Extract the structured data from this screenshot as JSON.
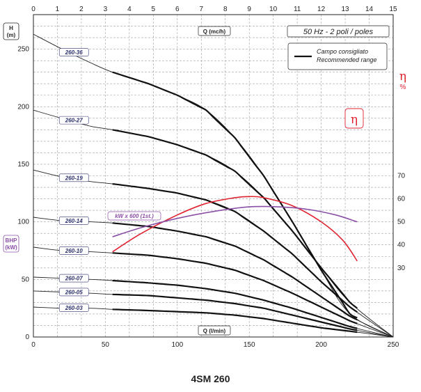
{
  "chart_data": {
    "type": "line",
    "title": "4SM 260",
    "header": "50 Hz - 2 poli / poles",
    "x_top": {
      "label": "Q",
      "unit": "(mc/h)",
      "ticks": [
        0,
        1,
        2,
        3,
        4,
        5,
        6,
        7,
        8,
        9,
        10,
        11,
        12,
        13,
        14,
        15
      ],
      "range": [
        0,
        15
      ]
    },
    "x_bottom": {
      "label": "Q",
      "unit": "(l/min)",
      "ticks": [
        0,
        50,
        100,
        150,
        200,
        250
      ],
      "range": [
        0,
        250
      ]
    },
    "y_left": {
      "label": "H",
      "unit": "(m)",
      "ticks": [
        0,
        50,
        100,
        150,
        200,
        250
      ],
      "range": [
        0,
        280
      ]
    },
    "y_right_eta": {
      "label": "η",
      "unit": "%",
      "ticks": [
        30,
        40,
        50,
        60,
        70
      ],
      "range": [
        0,
        140
      ]
    },
    "bhp_label": {
      "label": "BHP",
      "unit": "(kW)"
    },
    "legend": {
      "line1": "Campo consigliato",
      "line2": "Recommended range"
    },
    "eta_box_label": "η",
    "kw_label": "kW x 600 (1st.)",
    "recommended_range_lpm": [
      55,
      225
    ],
    "head_curves": [
      {
        "model": "260-36",
        "points": [
          [
            0,
            263
          ],
          [
            20,
            250
          ],
          [
            40,
            238
          ],
          [
            55,
            230
          ],
          [
            80,
            220
          ],
          [
            100,
            210
          ],
          [
            120,
            197
          ],
          [
            140,
            173
          ],
          [
            160,
            140
          ],
          [
            180,
            100
          ],
          [
            200,
            58
          ],
          [
            220,
            20
          ],
          [
            250,
            0
          ]
        ]
      },
      {
        "model": "260-27",
        "points": [
          [
            0,
            197
          ],
          [
            25,
            188
          ],
          [
            40,
            183
          ],
          [
            55,
            180
          ],
          [
            80,
            174
          ],
          [
            100,
            167
          ],
          [
            120,
            158
          ],
          [
            140,
            144
          ],
          [
            160,
            121
          ],
          [
            180,
            92
          ],
          [
            200,
            60
          ],
          [
            220,
            30
          ],
          [
            250,
            0
          ]
        ]
      },
      {
        "model": "260-19",
        "points": [
          [
            0,
            145
          ],
          [
            20,
            139
          ],
          [
            40,
            135
          ],
          [
            55,
            133
          ],
          [
            80,
            129
          ],
          [
            100,
            125
          ],
          [
            120,
            119
          ],
          [
            140,
            109
          ],
          [
            160,
            92
          ],
          [
            180,
            72
          ],
          [
            200,
            48
          ],
          [
            220,
            26
          ],
          [
            250,
            0
          ]
        ]
      },
      {
        "model": "260-14",
        "points": [
          [
            0,
            104
          ],
          [
            20,
            101
          ],
          [
            40,
            100
          ],
          [
            55,
            99
          ],
          [
            80,
            96
          ],
          [
            100,
            92
          ],
          [
            120,
            87
          ],
          [
            140,
            79
          ],
          [
            160,
            67
          ],
          [
            180,
            52
          ],
          [
            200,
            35
          ],
          [
            220,
            18
          ],
          [
            250,
            0
          ]
        ]
      },
      {
        "model": "260-10",
        "points": [
          [
            0,
            78
          ],
          [
            20,
            75
          ],
          [
            40,
            74
          ],
          [
            55,
            73
          ],
          [
            80,
            71
          ],
          [
            100,
            68
          ],
          [
            120,
            64
          ],
          [
            140,
            58
          ],
          [
            160,
            49
          ],
          [
            180,
            38
          ],
          [
            200,
            26
          ],
          [
            220,
            14
          ],
          [
            250,
            0
          ]
        ]
      },
      {
        "model": "260-07",
        "points": [
          [
            0,
            52
          ],
          [
            20,
            51
          ],
          [
            40,
            50
          ],
          [
            55,
            49
          ],
          [
            80,
            47
          ],
          [
            100,
            45
          ],
          [
            120,
            42
          ],
          [
            140,
            38
          ],
          [
            160,
            32
          ],
          [
            180,
            25
          ],
          [
            200,
            17
          ],
          [
            220,
            9
          ],
          [
            250,
            0
          ]
        ]
      },
      {
        "model": "260-05",
        "points": [
          [
            0,
            40
          ],
          [
            20,
            39
          ],
          [
            40,
            38
          ],
          [
            55,
            37
          ],
          [
            80,
            36
          ],
          [
            100,
            34
          ],
          [
            120,
            32
          ],
          [
            140,
            29
          ],
          [
            160,
            25
          ],
          [
            180,
            19
          ],
          [
            200,
            13
          ],
          [
            220,
            7
          ],
          [
            250,
            0
          ]
        ]
      },
      {
        "model": "260-03",
        "points": [
          [
            0,
            26
          ],
          [
            20,
            25
          ],
          [
            40,
            25
          ],
          [
            55,
            24
          ],
          [
            80,
            23
          ],
          [
            100,
            22
          ],
          [
            120,
            21
          ],
          [
            140,
            19
          ],
          [
            160,
            16
          ],
          [
            180,
            12
          ],
          [
            200,
            8
          ],
          [
            220,
            5
          ],
          [
            250,
            0
          ]
        ]
      }
    ],
    "efficiency_curve": [
      [
        55,
        37
      ],
      [
        75,
        45
      ],
      [
        100,
        53
      ],
      [
        120,
        58
      ],
      [
        140,
        60.5
      ],
      [
        150,
        61
      ],
      [
        160,
        60.5
      ],
      [
        180,
        57
      ],
      [
        200,
        50
      ],
      [
        215,
        42
      ],
      [
        225,
        33
      ]
    ],
    "power_curve_kw_x600": [
      [
        55,
        87
      ],
      [
        75,
        95
      ],
      [
        100,
        103
      ],
      [
        125,
        109
      ],
      [
        150,
        113
      ],
      [
        170,
        113
      ],
      [
        190,
        111
      ],
      [
        210,
        106
      ],
      [
        225,
        100
      ]
    ]
  }
}
